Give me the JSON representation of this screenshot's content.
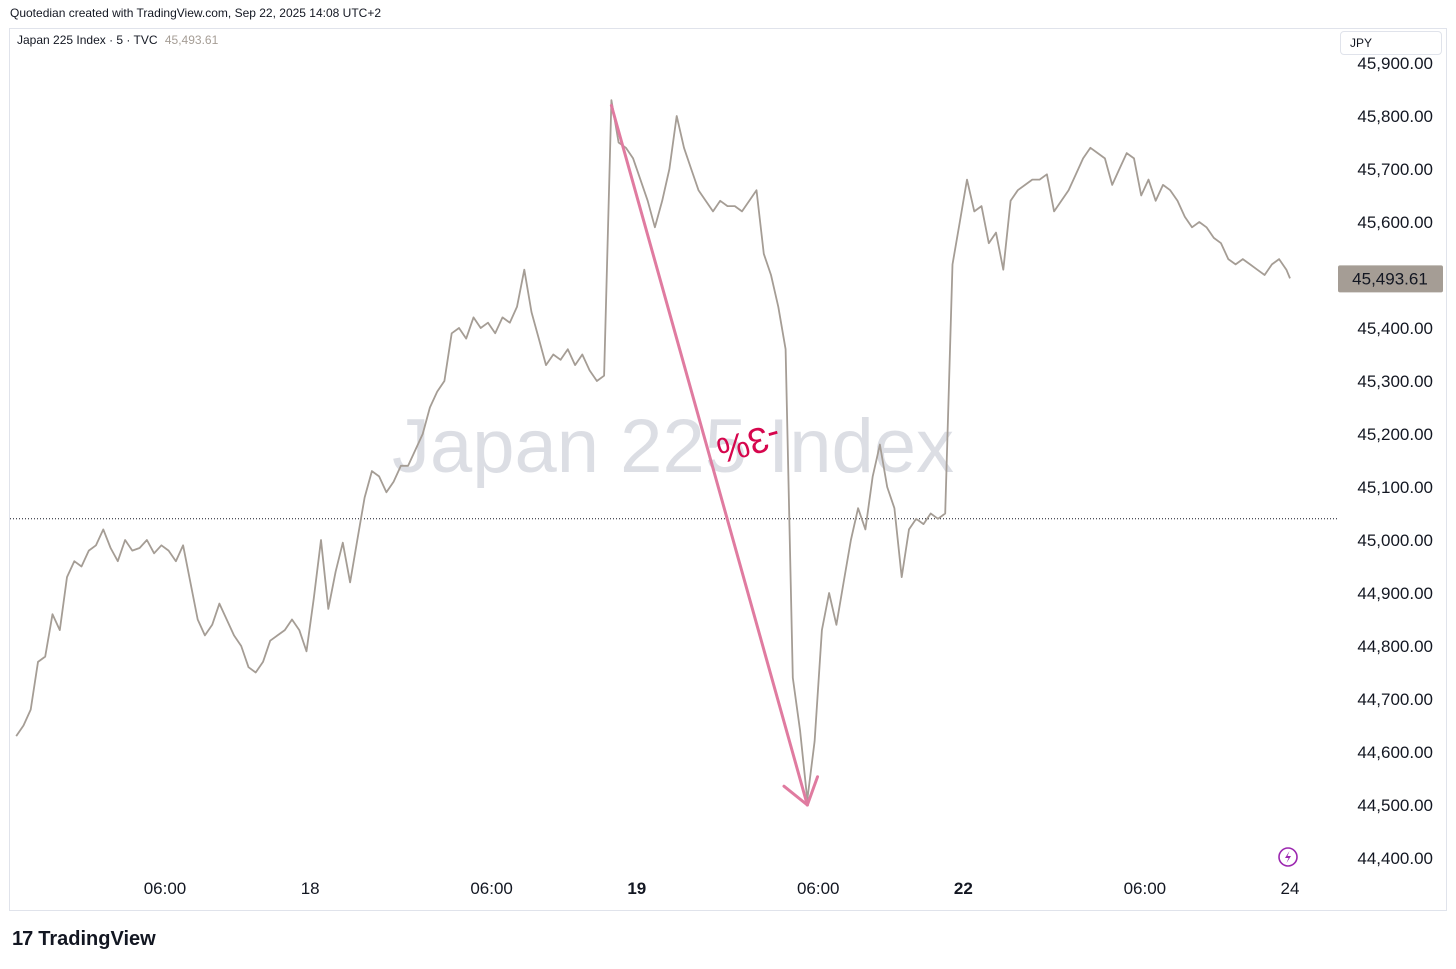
{
  "header": {
    "credit": "Quotedian created with TradingView.com, Sep 22, 2025 14:08 UTC+2"
  },
  "legend": {
    "symbol": "Japan 225 Index · 5 · TVC",
    "last_price": "45,493.61"
  },
  "currency_button": "JPY",
  "watermark": "Japan 225 Index",
  "annotation": {
    "label": "-3%",
    "arrow_color": "#e07ba0",
    "text_color": "#d6064d"
  },
  "footer": {
    "logo_mark": "17",
    "logo_text": "TradingView"
  },
  "colors": {
    "line": "#a59d95",
    "price_tag_bg": "#a59d95"
  },
  "chart_data": {
    "type": "line",
    "title": "Japan 225 Index",
    "xlabel": "",
    "ylabel": "",
    "ylim": [
      44350,
      45950
    ],
    "reference_line": 45040,
    "last_value": 45493.61,
    "last_value_label": "45,493.61",
    "y_ticks": [
      45900,
      45800,
      45700,
      45600,
      45500,
      45400,
      45300,
      45200,
      45100,
      45000,
      44900,
      44800,
      44700,
      44600,
      44500,
      44400
    ],
    "y_tick_labels": [
      "45,900.00",
      "45,800.00",
      "45,700.00",
      "45,600.00",
      "45,500.00",
      "45,400.00",
      "45,300.00",
      "45,200.00",
      "45,100.00",
      "45,000.00",
      "44,900.00",
      "44,800.00",
      "44,700.00",
      "44,600.00",
      "44,500.00",
      "44,400.00"
    ],
    "x_tick_labels": [
      {
        "label": "06:00",
        "t": 4.0,
        "bold": false
      },
      {
        "label": "18",
        "t": 8.0,
        "bold": false
      },
      {
        "label": "06:00",
        "t": 13.0,
        "bold": false
      },
      {
        "label": "19",
        "t": 17.0,
        "bold": true
      },
      {
        "label": "06:00",
        "t": 22.0,
        "bold": false
      },
      {
        "label": "22",
        "t": 26.0,
        "bold": true
      },
      {
        "label": "06:00",
        "t": 31.0,
        "bold": false
      },
      {
        "label": "24",
        "t": 35.0,
        "bold": false
      }
    ],
    "series": [
      {
        "points": [
          [
            -0.1,
            44630
          ],
          [
            0.1,
            44650
          ],
          [
            0.3,
            44680
          ],
          [
            0.5,
            44770
          ],
          [
            0.7,
            44780
          ],
          [
            0.9,
            44860
          ],
          [
            1.1,
            44830
          ],
          [
            1.3,
            44930
          ],
          [
            1.5,
            44960
          ],
          [
            1.7,
            44950
          ],
          [
            1.9,
            44980
          ],
          [
            2.1,
            44990
          ],
          [
            2.3,
            45020
          ],
          [
            2.5,
            44985
          ],
          [
            2.7,
            44960
          ],
          [
            2.9,
            45000
          ],
          [
            3.1,
            44980
          ],
          [
            3.3,
            44985
          ],
          [
            3.5,
            45000
          ],
          [
            3.7,
            44975
          ],
          [
            3.9,
            44990
          ],
          [
            4.1,
            44980
          ],
          [
            4.3,
            44960
          ],
          [
            4.5,
            44990
          ],
          [
            4.7,
            44920
          ],
          [
            4.9,
            44850
          ],
          [
            5.1,
            44820
          ],
          [
            5.3,
            44840
          ],
          [
            5.5,
            44880
          ],
          [
            5.7,
            44850
          ],
          [
            5.9,
            44820
          ],
          [
            6.1,
            44800
          ],
          [
            6.3,
            44760
          ],
          [
            6.5,
            44750
          ],
          [
            6.7,
            44770
          ],
          [
            6.9,
            44810
          ],
          [
            7.1,
            44820
          ],
          [
            7.3,
            44830
          ],
          [
            7.5,
            44850
          ],
          [
            7.7,
            44830
          ],
          [
            7.9,
            44790
          ],
          [
            8.1,
            44890
          ],
          [
            8.3,
            45000
          ],
          [
            8.5,
            44870
          ],
          [
            8.7,
            44940
          ],
          [
            8.9,
            44995
          ],
          [
            9.1,
            44920
          ],
          [
            9.3,
            45000
          ],
          [
            9.5,
            45080
          ],
          [
            9.7,
            45130
          ],
          [
            9.9,
            45120
          ],
          [
            10.1,
            45090
          ],
          [
            10.3,
            45110
          ],
          [
            10.5,
            45140
          ],
          [
            10.7,
            45140
          ],
          [
            10.9,
            45170
          ],
          [
            11.1,
            45200
          ],
          [
            11.3,
            45250
          ],
          [
            11.5,
            45280
          ],
          [
            11.7,
            45300
          ],
          [
            11.9,
            45390
          ],
          [
            12.1,
            45400
          ],
          [
            12.3,
            45380
          ],
          [
            12.5,
            45420
          ],
          [
            12.7,
            45400
          ],
          [
            12.9,
            45410
          ],
          [
            13.1,
            45390
          ],
          [
            13.3,
            45420
          ],
          [
            13.5,
            45410
          ],
          [
            13.7,
            45440
          ],
          [
            13.9,
            45510
          ],
          [
            14.1,
            45430
          ],
          [
            14.3,
            45380
          ],
          [
            14.5,
            45330
          ],
          [
            14.7,
            45350
          ],
          [
            14.9,
            45340
          ],
          [
            15.1,
            45360
          ],
          [
            15.3,
            45330
          ],
          [
            15.5,
            45350
          ],
          [
            15.7,
            45320
          ],
          [
            15.9,
            45300
          ],
          [
            16.1,
            45310
          ],
          [
            16.3,
            45830
          ],
          [
            16.5,
            45750
          ],
          [
            16.7,
            45740
          ],
          [
            16.9,
            45720
          ],
          [
            17.1,
            45680
          ],
          [
            17.3,
            45640
          ],
          [
            17.5,
            45590
          ],
          [
            17.7,
            45640
          ],
          [
            17.9,
            45700
          ],
          [
            18.1,
            45800
          ],
          [
            18.3,
            45740
          ],
          [
            18.5,
            45700
          ],
          [
            18.7,
            45660
          ],
          [
            18.9,
            45640
          ],
          [
            19.1,
            45620
          ],
          [
            19.3,
            45640
          ],
          [
            19.5,
            45630
          ],
          [
            19.7,
            45630
          ],
          [
            19.9,
            45620
          ],
          [
            20.1,
            45640
          ],
          [
            20.3,
            45660
          ],
          [
            20.5,
            45540
          ],
          [
            20.7,
            45500
          ],
          [
            20.9,
            45440
          ],
          [
            21.1,
            45360
          ],
          [
            21.3,
            44740
          ],
          [
            21.5,
            44640
          ],
          [
            21.7,
            44510
          ],
          [
            21.9,
            44620
          ],
          [
            22.1,
            44830
          ],
          [
            22.3,
            44900
          ],
          [
            22.5,
            44840
          ],
          [
            22.7,
            44920
          ],
          [
            22.9,
            45000
          ],
          [
            23.1,
            45060
          ],
          [
            23.3,
            45020
          ],
          [
            23.5,
            45120
          ],
          [
            23.7,
            45180
          ],
          [
            23.9,
            45100
          ],
          [
            24.1,
            45060
          ],
          [
            24.3,
            44930
          ],
          [
            24.5,
            45020
          ],
          [
            24.7,
            45040
          ],
          [
            24.9,
            45030
          ],
          [
            25.1,
            45050
          ],
          [
            25.3,
            45040
          ],
          [
            25.5,
            45050
          ],
          [
            25.7,
            45520
          ],
          [
            25.9,
            45600
          ],
          [
            26.1,
            45680
          ],
          [
            26.3,
            45620
          ],
          [
            26.5,
            45630
          ],
          [
            26.7,
            45560
          ],
          [
            26.9,
            45580
          ],
          [
            27.1,
            45510
          ],
          [
            27.3,
            45640
          ],
          [
            27.5,
            45660
          ],
          [
            27.7,
            45670
          ],
          [
            27.9,
            45680
          ],
          [
            28.1,
            45680
          ],
          [
            28.3,
            45690
          ],
          [
            28.5,
            45620
          ],
          [
            28.7,
            45640
          ],
          [
            28.9,
            45660
          ],
          [
            29.1,
            45690
          ],
          [
            29.3,
            45720
          ],
          [
            29.5,
            45740
          ],
          [
            29.7,
            45730
          ],
          [
            29.9,
            45720
          ],
          [
            30.1,
            45670
          ],
          [
            30.3,
            45700
          ],
          [
            30.5,
            45730
          ],
          [
            30.7,
            45720
          ],
          [
            30.9,
            45650
          ],
          [
            31.1,
            45680
          ],
          [
            31.3,
            45640
          ],
          [
            31.5,
            45670
          ],
          [
            31.7,
            45660
          ],
          [
            31.9,
            45640
          ],
          [
            32.1,
            45610
          ],
          [
            32.3,
            45590
          ],
          [
            32.5,
            45600
          ],
          [
            32.7,
            45590
          ],
          [
            32.9,
            45570
          ],
          [
            33.1,
            45560
          ],
          [
            33.3,
            45530
          ],
          [
            33.5,
            45520
          ],
          [
            33.7,
            45530
          ],
          [
            33.9,
            45520
          ],
          [
            34.1,
            45510
          ],
          [
            34.3,
            45500
          ],
          [
            34.5,
            45520
          ],
          [
            34.7,
            45530
          ],
          [
            34.9,
            45510
          ],
          [
            35.0,
            45493.61
          ]
        ]
      }
    ],
    "annotations": [
      {
        "type": "arrow",
        "from": [
          16.3,
          45820
        ],
        "to": [
          21.7,
          44500
        ]
      }
    ]
  }
}
